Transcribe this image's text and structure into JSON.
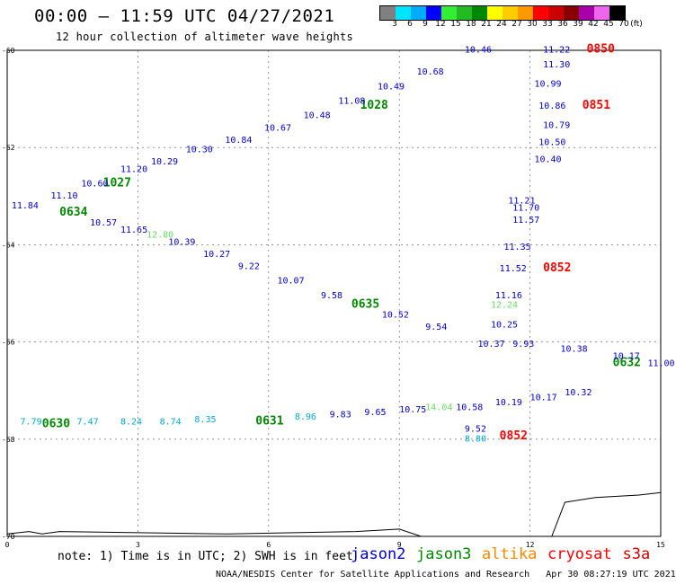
{
  "header": {
    "title": "00:00 – 11:59 UTC 04/27/2021",
    "subtitle": "12 hour collection of altimeter wave heights"
  },
  "legend": {
    "unit_label": "(ft)",
    "ticks": [
      "3",
      "6",
      "9",
      "12",
      "15",
      "18",
      "21",
      "24",
      "27",
      "30",
      "33",
      "36",
      "39",
      "42",
      "45",
      "70"
    ],
    "colors": [
      "#808080",
      "#00e5ff",
      "#00aaff",
      "#0000ff",
      "#33ee33",
      "#22bb22",
      "#008800",
      "#ffff00",
      "#ffcc00",
      "#ff9900",
      "#ff0000",
      "#cc0000",
      "#880000",
      "#aa00aa",
      "#ee66ee",
      "#000000"
    ]
  },
  "map": {
    "lat_labels": [
      "-60",
      "-62",
      "-64",
      "-66",
      "-68",
      "-70"
    ],
    "lon_labels": [
      "0",
      "3",
      "6",
      "9",
      "12",
      "15"
    ],
    "colors": {
      "jason2": "#0000cc",
      "jason3": "#008800",
      "altika": "#ff8800",
      "cryosat": "#ff0000",
      "s3a": "#cc0000",
      "light_green": "#66dd66",
      "cyan": "#00aacc"
    }
  },
  "chart_data": {
    "type": "scatter",
    "xlabel": "",
    "ylabel": "",
    "xlim": [
      0,
      15
    ],
    "ylim": [
      -70,
      -60
    ],
    "observations": [
      {
        "x": 10.5,
        "y": -60.05,
        "text": "10.46",
        "sat": "jason2"
      },
      {
        "x": 12.3,
        "y": -60.05,
        "text": "11.22",
        "sat": "jason2"
      },
      {
        "x": 13.3,
        "y": -60.05,
        "text": "0850",
        "sat": "cryosat"
      },
      {
        "x": 12.3,
        "y": -60.35,
        "text": "11.30",
        "sat": "jason2"
      },
      {
        "x": 12.1,
        "y": -60.75,
        "text": "10.99",
        "sat": "jason2"
      },
      {
        "x": 12.2,
        "y": -61.2,
        "text": "10.86",
        "sat": "jason2"
      },
      {
        "x": 13.2,
        "y": -61.2,
        "text": "0851",
        "sat": "cryosat"
      },
      {
        "x": 12.3,
        "y": -61.6,
        "text": "10.79",
        "sat": "jason2"
      },
      {
        "x": 12.2,
        "y": -61.95,
        "text": "10.50",
        "sat": "jason2"
      },
      {
        "x": 12.1,
        "y": -62.3,
        "text": "10.40",
        "sat": "jason2"
      },
      {
        "x": 11.5,
        "y": -63.15,
        "text": "11.21",
        "sat": "jason2"
      },
      {
        "x": 11.6,
        "y": -63.3,
        "text": "11.70",
        "sat": "jason2"
      },
      {
        "x": 11.6,
        "y": -63.55,
        "text": "11.57",
        "sat": "jason2"
      },
      {
        "x": 11.4,
        "y": -64.1,
        "text": "11.35",
        "sat": "jason2"
      },
      {
        "x": 11.3,
        "y": -64.55,
        "text": "11.52",
        "sat": "jason2"
      },
      {
        "x": 12.3,
        "y": -64.55,
        "text": "0852",
        "sat": "cryosat"
      },
      {
        "x": 11.2,
        "y": -65.1,
        "text": "11.16",
        "sat": "jason2"
      },
      {
        "x": 11.1,
        "y": -65.3,
        "text": "12.24",
        "sat": "light_green"
      },
      {
        "x": 11.1,
        "y": -65.7,
        "text": "10.25",
        "sat": "jason2"
      },
      {
        "x": 10.8,
        "y": -66.1,
        "text": "10.37",
        "sat": "jason2"
      },
      {
        "x": 8.1,
        "y": -61.2,
        "text": "1028",
        "sat": "jason3"
      },
      {
        "x": 2.2,
        "y": -62.8,
        "text": "1027",
        "sat": "jason3"
      },
      {
        "x": 1.2,
        "y": -63.4,
        "text": "0634",
        "sat": "jason3"
      },
      {
        "x": 7.9,
        "y": -65.3,
        "text": "0635",
        "sat": "jason3"
      },
      {
        "x": 13.9,
        "y": -66.5,
        "text": "0632",
        "sat": "jason3"
      },
      {
        "x": 0.8,
        "y": -67.75,
        "text": "0630",
        "sat": "jason3"
      },
      {
        "x": 5.7,
        "y": -67.7,
        "text": "0631",
        "sat": "jason3"
      },
      {
        "x": 0.1,
        "y": -63.25,
        "text": "11.84",
        "sat": "jason2"
      },
      {
        "x": 1.0,
        "y": -63.05,
        "text": "11.10",
        "sat": "jason2"
      },
      {
        "x": 1.7,
        "y": -62.8,
        "text": "10.60",
        "sat": "jason2"
      },
      {
        "x": 2.6,
        "y": -62.5,
        "text": "11.20",
        "sat": "jason2"
      },
      {
        "x": 3.3,
        "y": -62.35,
        "text": "10.29",
        "sat": "jason2"
      },
      {
        "x": 4.1,
        "y": -62.1,
        "text": "10.30",
        "sat": "jason2"
      },
      {
        "x": 5.0,
        "y": -61.9,
        "text": "10.84",
        "sat": "jason2"
      },
      {
        "x": 5.9,
        "y": -61.65,
        "text": "10.67",
        "sat": "jason2"
      },
      {
        "x": 6.8,
        "y": -61.4,
        "text": "10.48",
        "sat": "jason2"
      },
      {
        "x": 7.6,
        "y": -61.1,
        "text": "11.08",
        "sat": "jason2"
      },
      {
        "x": 8.5,
        "y": -60.8,
        "text": "10.49",
        "sat": "jason2"
      },
      {
        "x": 9.4,
        "y": -60.5,
        "text": "10.68",
        "sat": "jason2"
      },
      {
        "x": 1.9,
        "y": -63.6,
        "text": "10.57",
        "sat": "jason2"
      },
      {
        "x": 2.6,
        "y": -63.75,
        "text": "11.65",
        "sat": "jason2"
      },
      {
        "x": 3.2,
        "y": -63.85,
        "text": "12.80",
        "sat": "light_green"
      },
      {
        "x": 3.7,
        "y": -64.0,
        "text": "10.39",
        "sat": "jason2"
      },
      {
        "x": 4.5,
        "y": -64.25,
        "text": "10.27",
        "sat": "jason2"
      },
      {
        "x": 5.3,
        "y": -64.5,
        "text": "9.22",
        "sat": "jason2"
      },
      {
        "x": 6.2,
        "y": -64.8,
        "text": "10.07",
        "sat": "jason2"
      },
      {
        "x": 7.2,
        "y": -65.1,
        "text": "9.58",
        "sat": "jason2"
      },
      {
        "x": 8.6,
        "y": -65.5,
        "text": "10.52",
        "sat": "jason2"
      },
      {
        "x": 9.6,
        "y": -65.75,
        "text": "9.54",
        "sat": "jason2"
      },
      {
        "x": 11.6,
        "y": -66.1,
        "text": "9.93",
        "sat": "jason2"
      },
      {
        "x": 12.7,
        "y": -66.2,
        "text": "10.38",
        "sat": "jason2"
      },
      {
        "x": 13.9,
        "y": -66.35,
        "text": "10.17",
        "sat": "jason2"
      },
      {
        "x": 14.7,
        "y": -66.5,
        "text": "11.00",
        "sat": "jason2"
      },
      {
        "x": 0.3,
        "y": -67.7,
        "text": "7.79",
        "sat": "cyan"
      },
      {
        "x": 1.6,
        "y": -67.7,
        "text": "7.47",
        "sat": "cyan"
      },
      {
        "x": 2.6,
        "y": -67.7,
        "text": "8.24",
        "sat": "cyan"
      },
      {
        "x": 3.5,
        "y": -67.7,
        "text": "8.74",
        "sat": "cyan"
      },
      {
        "x": 4.3,
        "y": -67.65,
        "text": "8.35",
        "sat": "cyan"
      },
      {
        "x": 6.6,
        "y": -67.6,
        "text": "8.96",
        "sat": "cyan"
      },
      {
        "x": 7.4,
        "y": -67.55,
        "text": "9.83",
        "sat": "jason2"
      },
      {
        "x": 8.2,
        "y": -67.5,
        "text": "9.65",
        "sat": "jason2"
      },
      {
        "x": 9.0,
        "y": -67.45,
        "text": "10.75",
        "sat": "jason2"
      },
      {
        "x": 9.6,
        "y": -67.4,
        "text": "14.04",
        "sat": "light_green"
      },
      {
        "x": 10.3,
        "y": -67.4,
        "text": "10.58",
        "sat": "jason2"
      },
      {
        "x": 11.2,
        "y": -67.3,
        "text": "10.19",
        "sat": "jason2"
      },
      {
        "x": 12.0,
        "y": -67.2,
        "text": "10.17",
        "sat": "jason2"
      },
      {
        "x": 12.8,
        "y": -67.1,
        "text": "10.32",
        "sat": "jason2"
      },
      {
        "x": 10.5,
        "y": -67.85,
        "text": "9.52",
        "sat": "jason2"
      },
      {
        "x": 10.5,
        "y": -68.05,
        "text": "8.80",
        "sat": "cyan"
      },
      {
        "x": 11.3,
        "y": -68.0,
        "text": "0852",
        "sat": "cryosat"
      }
    ]
  },
  "footer": {
    "note": "note: 1) Time is in UTC; 2) SWH is in feet",
    "credit": "NOAA/NESDIS Center for Satellite Applications and Research   Apr 30 08:27:19 UTC 2021",
    "satellites": [
      {
        "name": "jason2",
        "color": "#0000cc"
      },
      {
        "name": "jason3",
        "color": "#008800"
      },
      {
        "name": "altika",
        "color": "#ff8800"
      },
      {
        "name": "cryosat",
        "color": "#ff0000"
      },
      {
        "name": "s3a",
        "color": "#cc0000"
      }
    ]
  }
}
